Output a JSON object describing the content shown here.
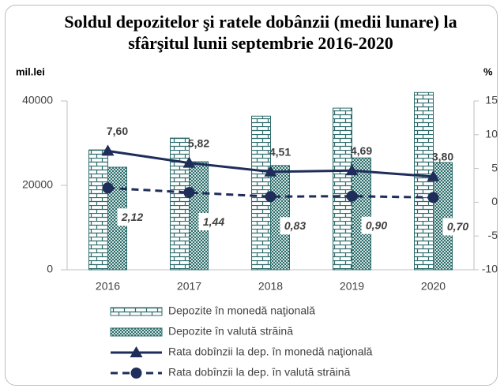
{
  "chart_data": {
    "type": "combo",
    "title": "Soldul depozitelor şi ratele dobânzii (medii lunare) la sfârşitul lunii septembrie 2016-2020",
    "y_label": "mil.lei",
    "y2_label": "%",
    "categories": [
      "2016",
      "2017",
      "2018",
      "2019",
      "2020"
    ],
    "ylim": [
      0,
      40000
    ],
    "yticks": [
      0,
      20000,
      40000
    ],
    "y2lim": [
      -10,
      15
    ],
    "y2ticks": [
      -10,
      -5,
      0,
      5,
      10,
      15
    ],
    "series": [
      {
        "name": "Depozite în monedă naţională",
        "type": "bar",
        "pattern": "brick",
        "color": "#2e6b6b",
        "values": [
          28400,
          31200,
          36400,
          38300,
          42000
        ]
      },
      {
        "name": "Depozite în valută străină",
        "type": "bar",
        "pattern": "check",
        "color": "#2e6b6b",
        "values": [
          24300,
          25600,
          24700,
          26500,
          25400
        ]
      },
      {
        "name": "Rata dobînzii la dep. în monedă naţională",
        "type": "line",
        "axis": "y2",
        "marker": "triangle",
        "dashed": false,
        "color": "#1f2d5a",
        "values": [
          7.6,
          5.82,
          4.51,
          4.69,
          3.8
        ],
        "value_labels": [
          "7,60",
          "5,82",
          "4,51",
          "4,69",
          "3,80"
        ]
      },
      {
        "name": "Rata dobînzii la dep. în valută străină",
        "type": "line",
        "axis": "y2",
        "marker": "circle",
        "dashed": true,
        "color": "#1f2d5a",
        "values": [
          2.12,
          1.44,
          0.83,
          0.9,
          0.7
        ],
        "value_labels": [
          "2,12",
          "1,44",
          "0,83",
          "0,90",
          "0,70"
        ]
      }
    ]
  }
}
